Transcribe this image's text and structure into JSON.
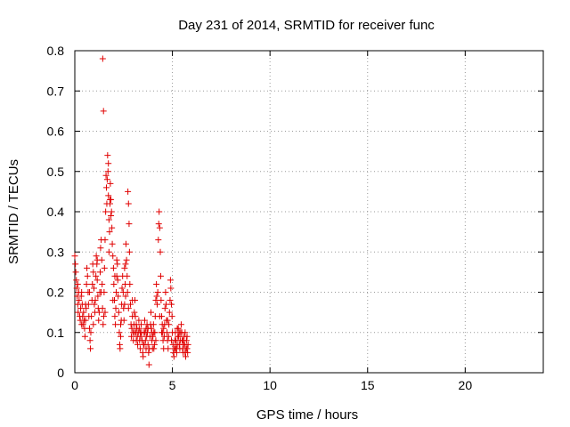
{
  "chart_data": {
    "type": "scatter",
    "title": "Day 231 of 2014, SRMTID for receiver func",
    "xlabel": "GPS time / hours",
    "ylabel": "SRMTID / TECUs",
    "xlim": [
      0,
      24
    ],
    "ylim": [
      0,
      0.8
    ],
    "xticks": [
      0,
      5,
      10,
      15,
      20
    ],
    "yticks": [
      0,
      0.1,
      0.2,
      0.3,
      0.4,
      0.5,
      0.6,
      0.7,
      0.8
    ],
    "grid": true,
    "marker": "+",
    "color": "#e00000",
    "series": [
      {
        "name": "SRMTID",
        "points": [
          [
            0.0,
            0.29
          ],
          [
            0.03,
            0.27
          ],
          [
            0.05,
            0.25
          ],
          [
            0.08,
            0.23
          ],
          [
            0.1,
            0.21
          ],
          [
            0.12,
            0.19
          ],
          [
            0.15,
            0.17
          ],
          [
            0.17,
            0.15
          ],
          [
            0.2,
            0.2
          ],
          [
            0.22,
            0.18
          ],
          [
            0.25,
            0.14
          ],
          [
            0.28,
            0.13
          ],
          [
            0.3,
            0.16
          ],
          [
            0.33,
            0.19
          ],
          [
            0.35,
            0.2
          ],
          [
            0.38,
            0.17
          ],
          [
            0.4,
            0.14
          ],
          [
            0.42,
            0.12
          ],
          [
            0.45,
            0.15
          ],
          [
            0.48,
            0.13
          ],
          [
            0.5,
            0.11
          ],
          [
            0.52,
            0.09
          ],
          [
            0.55,
            0.13
          ],
          [
            0.58,
            0.16
          ],
          [
            0.6,
            0.22
          ],
          [
            0.62,
            0.26
          ],
          [
            0.65,
            0.24
          ],
          [
            0.68,
            0.2
          ],
          [
            0.7,
            0.17
          ],
          [
            0.72,
            0.14
          ],
          [
            0.75,
            0.11
          ],
          [
            0.78,
            0.08
          ],
          [
            0.8,
            0.06
          ],
          [
            0.82,
            0.1
          ],
          [
            0.85,
            0.14
          ],
          [
            0.88,
            0.18
          ],
          [
            0.9,
            0.22
          ],
          [
            0.92,
            0.27
          ],
          [
            0.95,
            0.25
          ],
          [
            0.98,
            0.21
          ],
          [
            1.0,
            0.17
          ],
          [
            1.03,
            0.15
          ],
          [
            1.05,
            0.18
          ],
          [
            1.08,
            0.24
          ],
          [
            1.1,
            0.29
          ],
          [
            1.13,
            0.27
          ],
          [
            1.15,
            0.23
          ],
          [
            1.18,
            0.19
          ],
          [
            1.2,
            0.16
          ],
          [
            1.22,
            0.13
          ],
          [
            1.25,
            0.15
          ],
          [
            1.28,
            0.2
          ],
          [
            1.3,
            0.25
          ],
          [
            1.32,
            0.31
          ],
          [
            1.35,
            0.33
          ],
          [
            1.38,
            0.28
          ],
          [
            1.4,
            0.22
          ],
          [
            1.42,
            0.16
          ],
          [
            1.45,
            0.12
          ],
          [
            1.48,
            0.14
          ],
          [
            1.43,
            0.78
          ],
          [
            1.47,
            0.65
          ],
          [
            1.5,
            0.2
          ],
          [
            1.52,
            0.26
          ],
          [
            1.55,
            0.33
          ],
          [
            1.58,
            0.4
          ],
          [
            1.6,
            0.49
          ],
          [
            1.62,
            0.46
          ],
          [
            1.64,
            0.42
          ],
          [
            1.66,
            0.48
          ],
          [
            1.68,
            0.54
          ],
          [
            1.7,
            0.5
          ],
          [
            1.72,
            0.44
          ],
          [
            1.75,
            0.38
          ],
          [
            1.78,
            0.35
          ],
          [
            1.8,
            0.42
          ],
          [
            1.82,
            0.47
          ],
          [
            1.85,
            0.43
          ],
          [
            1.88,
            0.4
          ],
          [
            1.9,
            0.36
          ],
          [
            1.92,
            0.32
          ],
          [
            1.95,
            0.29
          ],
          [
            1.98,
            0.26
          ],
          [
            2.0,
            0.22
          ],
          [
            2.03,
            0.18
          ],
          [
            2.05,
            0.14
          ],
          [
            2.08,
            0.12
          ],
          [
            2.1,
            0.16
          ],
          [
            2.12,
            0.2
          ],
          [
            2.15,
            0.24
          ],
          [
            2.18,
            0.27
          ],
          [
            2.2,
            0.23
          ],
          [
            2.22,
            0.19
          ],
          [
            2.25,
            0.15
          ],
          [
            2.28,
            0.1
          ],
          [
            2.3,
            0.07
          ],
          [
            2.32,
            0.06
          ],
          [
            2.35,
            0.09
          ],
          [
            2.38,
            0.13
          ],
          [
            2.4,
            0.17
          ],
          [
            2.42,
            0.21
          ],
          [
            2.45,
            0.24
          ],
          [
            2.48,
            0.2
          ],
          [
            2.5,
            0.16
          ],
          [
            2.52,
            0.13
          ],
          [
            2.55,
            0.17
          ],
          [
            2.58,
            0.22
          ],
          [
            2.6,
            0.27
          ],
          [
            2.62,
            0.32
          ],
          [
            2.65,
            0.28
          ],
          [
            2.68,
            0.24
          ],
          [
            2.7,
            0.2
          ],
          [
            2.72,
            0.45
          ],
          [
            2.75,
            0.42
          ],
          [
            2.78,
            0.37
          ],
          [
            2.8,
            0.3
          ],
          [
            2.82,
            0.22
          ],
          [
            2.85,
            0.17
          ],
          [
            2.88,
            0.12
          ],
          [
            2.9,
            0.09
          ],
          [
            2.92,
            0.11
          ],
          [
            2.95,
            0.14
          ],
          [
            2.98,
            0.1
          ],
          [
            3.0,
            0.08
          ],
          [
            3.03,
            0.12
          ],
          [
            3.05,
            0.15
          ],
          [
            3.08,
            0.18
          ],
          [
            3.1,
            0.14
          ],
          [
            3.12,
            0.1
          ],
          [
            3.15,
            0.08
          ],
          [
            3.18,
            0.11
          ],
          [
            3.2,
            0.09
          ],
          [
            3.22,
            0.07
          ],
          [
            3.25,
            0.1
          ],
          [
            3.28,
            0.13
          ],
          [
            3.3,
            0.11
          ],
          [
            3.32,
            0.08
          ],
          [
            3.35,
            0.06
          ],
          [
            3.38,
            0.09
          ],
          [
            3.4,
            0.12
          ],
          [
            3.42,
            0.1
          ],
          [
            3.45,
            0.08
          ],
          [
            3.48,
            0.05
          ],
          [
            3.5,
            0.04
          ],
          [
            3.52,
            0.07
          ],
          [
            3.55,
            0.1
          ],
          [
            3.58,
            0.13
          ],
          [
            3.6,
            0.1
          ],
          [
            3.62,
            0.08
          ],
          [
            3.65,
            0.06
          ],
          [
            3.68,
            0.09
          ],
          [
            3.7,
            0.12
          ],
          [
            3.72,
            0.1
          ],
          [
            3.75,
            0.07
          ],
          [
            3.78,
            0.05
          ],
          [
            3.8,
            0.02
          ],
          [
            3.82,
            0.06
          ],
          [
            3.85,
            0.09
          ],
          [
            3.88,
            0.12
          ],
          [
            3.9,
            0.15
          ],
          [
            3.92,
            0.11
          ],
          [
            3.95,
            0.08
          ],
          [
            3.98,
            0.06
          ],
          [
            4.0,
            0.09
          ],
          [
            4.03,
            0.12
          ],
          [
            4.05,
            0.1
          ],
          [
            4.08,
            0.07
          ],
          [
            4.1,
            0.1
          ],
          [
            4.12,
            0.14
          ],
          [
            4.15,
            0.18
          ],
          [
            4.18,
            0.22
          ],
          [
            4.2,
            0.19
          ],
          [
            4.22,
            0.17
          ],
          [
            4.25,
            0.2
          ],
          [
            4.28,
            0.33
          ],
          [
            4.3,
            0.37
          ],
          [
            4.32,
            0.4
          ],
          [
            4.35,
            0.36
          ],
          [
            4.38,
            0.3
          ],
          [
            4.4,
            0.24
          ],
          [
            4.42,
            0.18
          ],
          [
            4.45,
            0.14
          ],
          [
            4.48,
            0.12
          ],
          [
            4.5,
            0.1
          ],
          [
            4.52,
            0.08
          ],
          [
            4.55,
            0.06
          ],
          [
            4.58,
            0.09
          ],
          [
            4.6,
            0.12
          ],
          [
            4.62,
            0.16
          ],
          [
            4.65,
            0.2
          ],
          [
            4.68,
            0.17
          ],
          [
            4.7,
            0.13
          ],
          [
            4.72,
            0.1
          ],
          [
            4.75,
            0.08
          ],
          [
            4.78,
            0.06
          ],
          [
            4.8,
            0.09
          ],
          [
            4.82,
            0.12
          ],
          [
            4.85,
            0.15
          ],
          [
            4.88,
            0.18
          ],
          [
            4.9,
            0.23
          ],
          [
            4.92,
            0.21
          ],
          [
            4.95,
            0.17
          ],
          [
            4.98,
            0.14
          ],
          [
            5.0,
            0.1
          ],
          [
            5.03,
            0.07
          ],
          [
            5.05,
            0.05
          ],
          [
            5.08,
            0.04
          ],
          [
            5.1,
            0.06
          ],
          [
            5.12,
            0.08
          ],
          [
            5.15,
            0.1
          ],
          [
            5.18,
            0.08
          ],
          [
            5.2,
            0.06
          ],
          [
            5.22,
            0.05
          ],
          [
            5.25,
            0.07
          ],
          [
            5.28,
            0.09
          ],
          [
            5.3,
            0.11
          ],
          [
            5.32,
            0.09
          ],
          [
            5.35,
            0.07
          ],
          [
            5.38,
            0.06
          ],
          [
            5.4,
            0.08
          ],
          [
            5.42,
            0.1
          ],
          [
            5.45,
            0.12
          ],
          [
            5.48,
            0.1
          ],
          [
            5.5,
            0.08
          ],
          [
            5.52,
            0.06
          ],
          [
            5.55,
            0.05
          ],
          [
            5.58,
            0.07
          ],
          [
            5.6,
            0.09
          ],
          [
            5.62,
            0.07
          ],
          [
            5.65,
            0.05
          ],
          [
            5.68,
            0.04
          ],
          [
            5.7,
            0.06
          ],
          [
            5.72,
            0.08
          ],
          [
            5.75,
            0.06
          ],
          [
            5.78,
            0.05
          ],
          [
            5.8,
            0.07
          ],
          [
            0.15,
            0.22
          ],
          [
            0.35,
            0.12
          ],
          [
            0.55,
            0.17
          ],
          [
            0.75,
            0.2
          ],
          [
            0.95,
            0.12
          ],
          [
            1.15,
            0.28
          ],
          [
            1.35,
            0.2
          ],
          [
            1.55,
            0.15
          ],
          [
            1.75,
            0.3
          ],
          [
            1.95,
            0.18
          ],
          [
            2.15,
            0.28
          ],
          [
            2.35,
            0.12
          ],
          [
            2.55,
            0.26
          ],
          [
            2.75,
            0.16
          ],
          [
            2.95,
            0.18
          ],
          [
            3.15,
            0.12
          ],
          [
            3.35,
            0.1
          ],
          [
            3.55,
            0.07
          ],
          [
            3.75,
            0.11
          ],
          [
            3.95,
            0.1
          ],
          [
            4.15,
            0.08
          ],
          [
            4.35,
            0.14
          ],
          [
            4.55,
            0.11
          ],
          [
            4.75,
            0.13
          ],
          [
            4.95,
            0.08
          ],
          [
            5.15,
            0.06
          ],
          [
            5.35,
            0.1
          ],
          [
            5.55,
            0.08
          ],
          [
            5.75,
            0.09
          ],
          [
            1.85,
            0.39
          ],
          [
            1.72,
            0.52
          ],
          [
            1.8,
            0.43
          ],
          [
            2.05,
            0.24
          ],
          [
            2.6,
            0.19
          ],
          [
            3.05,
            0.1
          ],
          [
            3.65,
            0.11
          ],
          [
            4.05,
            0.06
          ],
          [
            4.45,
            0.1
          ],
          [
            5.25,
            0.11
          ],
          [
            5.65,
            0.1
          ]
        ]
      }
    ]
  }
}
